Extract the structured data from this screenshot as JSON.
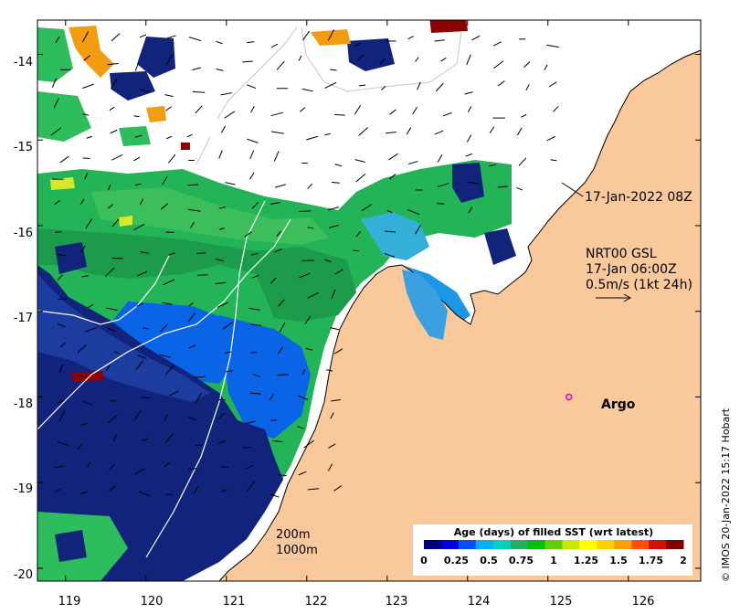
{
  "map": {
    "lon_ticks": [
      "119",
      "120",
      "121",
      "122",
      "123",
      "124",
      "125",
      "126"
    ],
    "lat_ticks": [
      "-14",
      "-15",
      "-16",
      "-17",
      "-18",
      "-19",
      "-20"
    ],
    "lon_range": [
      118.65,
      126.9
    ],
    "lat_range": [
      -20.15,
      -13.6
    ],
    "land_color": "#f9c89b",
    "no_data_color": "#ffffff"
  },
  "annotations": {
    "pass_time": "17-Jan-2022 08Z",
    "current_product": "NRT00 GSL",
    "current_time": "17-Jan 06:00Z",
    "current_scale": "0.5m/s (1kt 24h)",
    "argo_label": "Argo",
    "argo_marker_color": "#e000e0",
    "isobath_200": "200m",
    "isobath_1000": "1000m"
  },
  "argo": {
    "lon": 125.26,
    "lat": -18.0
  },
  "colorbar": {
    "title": "Age (days) of filled SST (wrt latest)",
    "ticks": [
      "0",
      "0.25",
      "0.5",
      "0.75",
      "1",
      "1.25",
      "1.5",
      "1.75",
      "2"
    ],
    "range": [
      0,
      2
    ],
    "colors": [
      "#00007f",
      "#0000e5",
      "#0050ff",
      "#00b0ff",
      "#00d0c0",
      "#20b060",
      "#00c000",
      "#60d000",
      "#c8e800",
      "#ffff00",
      "#ffd000",
      "#ffa000",
      "#ff5000",
      "#d01000",
      "#800000"
    ]
  },
  "credit": "© IMOS 20-Jan-2022 15:17 Hobart"
}
